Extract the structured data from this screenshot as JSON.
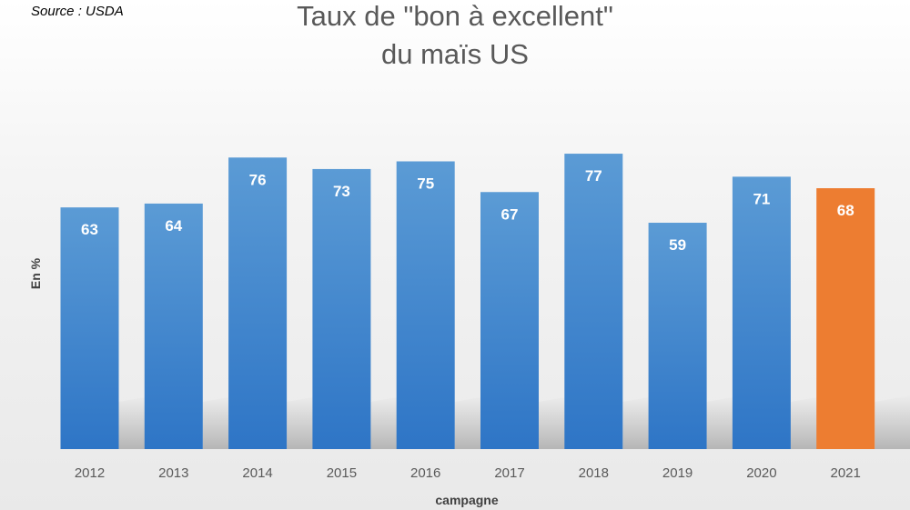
{
  "source_note": "Source : USDA",
  "chart_data": {
    "type": "bar",
    "title_lines": [
      "Taux de \"bon à excellent\"",
      "du maïs US"
    ],
    "xlabel": "campagne",
    "ylabel": "En %",
    "categories": [
      "2012",
      "2013",
      "2014",
      "2015",
      "2016",
      "2017",
      "2018",
      "2019",
      "2020",
      "2021"
    ],
    "values": [
      63,
      64,
      76,
      73,
      75,
      67,
      77,
      59,
      71,
      68
    ],
    "highlight_index": 9,
    "data_labels": true,
    "grid": false,
    "legend": "none",
    "colors": {
      "bar_top": "#5b9bd5",
      "bar_bottom": "#2e75c6",
      "highlight": "#ed7d31",
      "data_label": "#ffffff",
      "title": "#595959",
      "tick_label": "#595959",
      "axis_label": "#404040"
    }
  }
}
